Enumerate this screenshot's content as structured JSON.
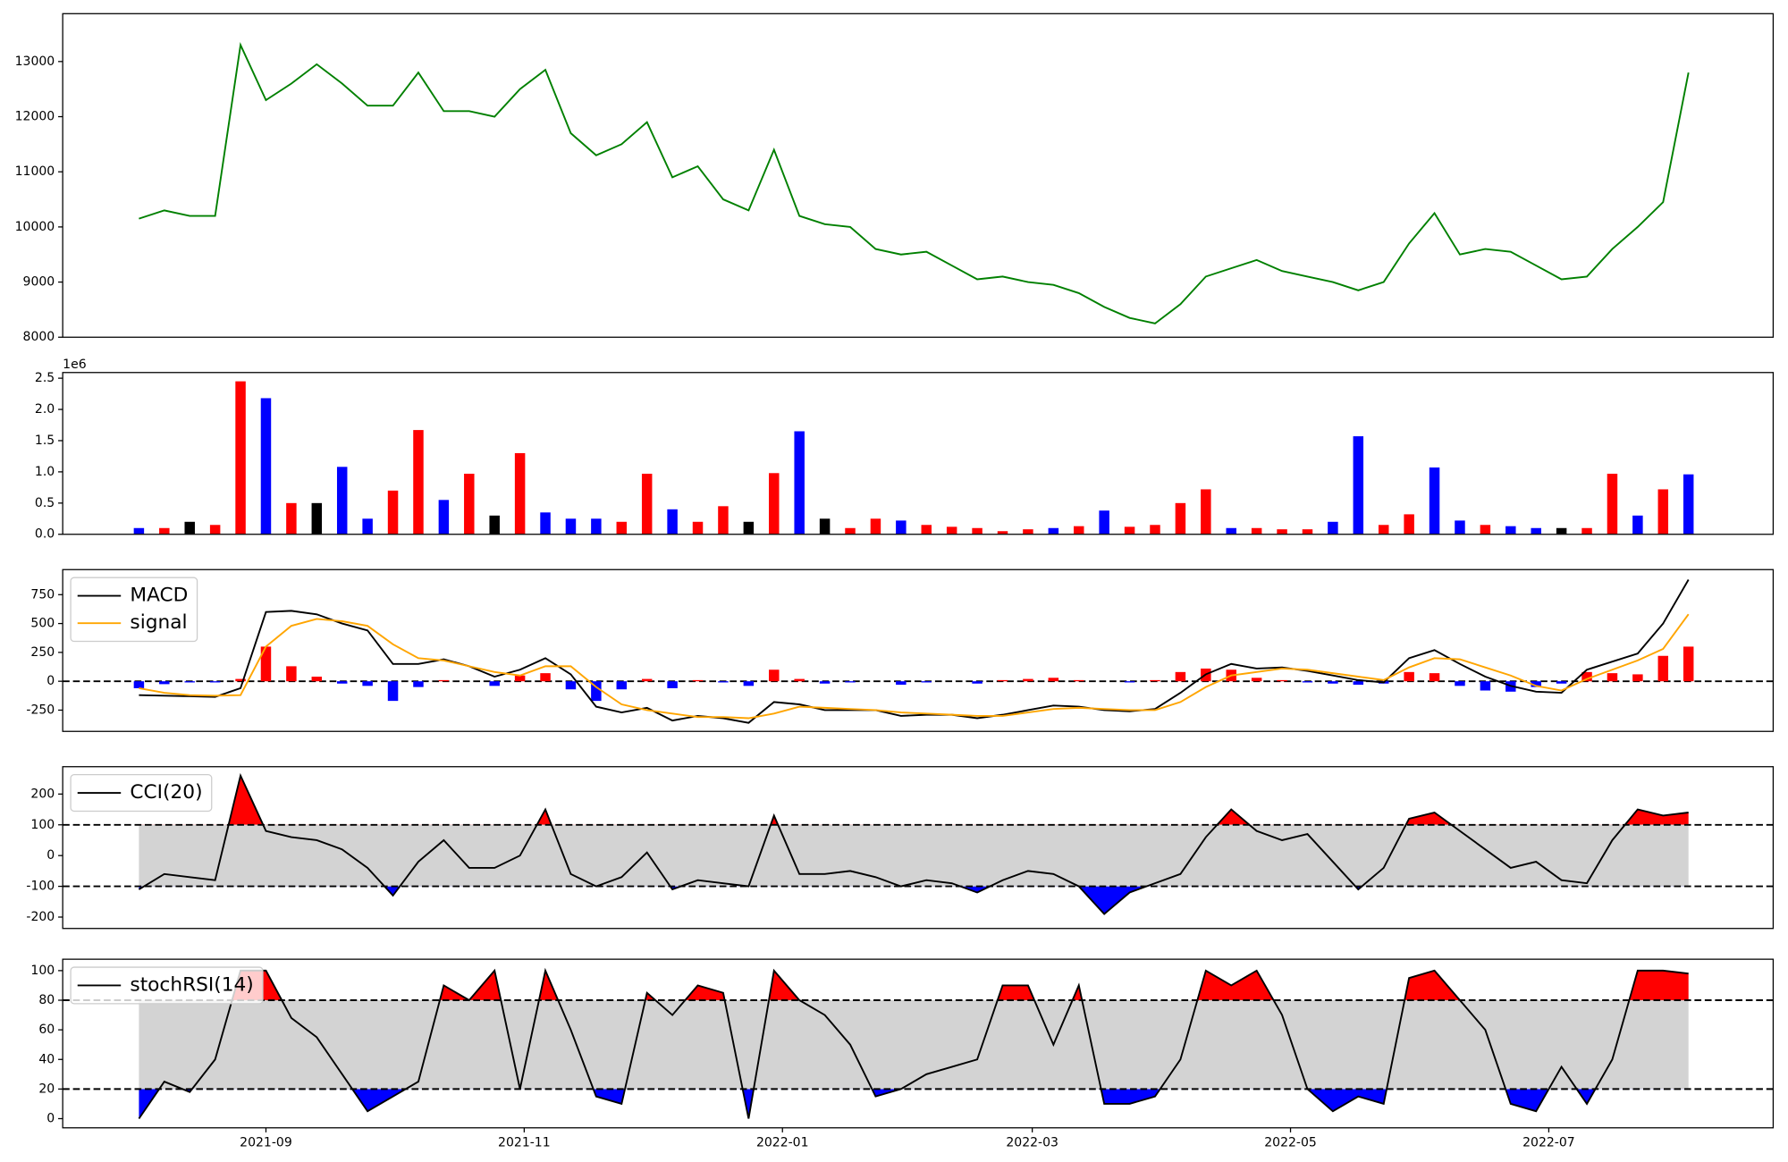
{
  "chart_data": [
    {
      "type": "line",
      "x": [
        18841,
        18847,
        18853,
        18859,
        18865,
        18871,
        18877,
        18883,
        18889,
        18895,
        18901,
        18907,
        18913,
        18919,
        18925,
        18931,
        18937,
        18943,
        18949,
        18955,
        18961,
        18967,
        18973,
        18979,
        18985,
        18991,
        18997,
        19003,
        19009,
        19015,
        19021,
        19027,
        19033,
        19039,
        19045,
        19051,
        19057,
        19063,
        19069,
        19075,
        19081,
        19087,
        19093,
        19099,
        19105,
        19111,
        19117,
        19123,
        19129,
        19135,
        19141,
        19147,
        19153,
        19159,
        19165,
        19171,
        19177,
        19183,
        19189,
        19195,
        19201,
        19207
      ],
      "xlim": [
        18823,
        19227
      ],
      "series": [
        {
          "color": "green",
          "values": [
            10150,
            10300,
            10200,
            10200,
            13300,
            12300,
            12600,
            12950,
            12600,
            12200,
            12200,
            12800,
            12100,
            12100,
            12000,
            12500,
            12850,
            11700,
            11300,
            11500,
            11900,
            10900,
            11100,
            10500,
            10300,
            11400,
            10200,
            10050,
            10000,
            9600,
            9500,
            9550,
            9300,
            9050,
            9100,
            9000,
            8950,
            8800,
            8550,
            8350,
            8250,
            8600,
            9100,
            9250,
            9400,
            9200,
            9100,
            9000,
            8850,
            9000,
            9700,
            10250,
            9500,
            9600,
            9550,
            9300,
            9050,
            9100,
            9600,
            10000,
            10450,
            12800
          ]
        }
      ],
      "ylim": [
        8000,
        13868
      ],
      "yticks": [
        8000,
        9000,
        10000,
        11000,
        12000,
        13000
      ]
    },
    {
      "type": "bar",
      "x": [
        18841,
        18847,
        18853,
        18859,
        18865,
        18871,
        18877,
        18883,
        18889,
        18895,
        18901,
        18907,
        18913,
        18919,
        18925,
        18931,
        18937,
        18943,
        18949,
        18955,
        18961,
        18967,
        18973,
        18979,
        18985,
        18991,
        18997,
        19003,
        19009,
        19015,
        19021,
        19027,
        19033,
        19039,
        19045,
        19051,
        19057,
        19063,
        19069,
        19075,
        19081,
        19087,
        19093,
        19099,
        19105,
        19111,
        19117,
        19123,
        19129,
        19135,
        19141,
        19147,
        19153,
        19159,
        19165,
        19171,
        19177,
        19183,
        19189,
        19195,
        19201,
        19207
      ],
      "xlim": [
        18823,
        19227
      ],
      "values": [
        100000,
        100000,
        200000,
        150000,
        2450000,
        2180000,
        500000,
        500000,
        1080000,
        250000,
        700000,
        1670000,
        550000,
        970000,
        300000,
        1300000,
        350000,
        250000,
        250000,
        200000,
        970000,
        400000,
        200000,
        450000,
        200000,
        980000,
        1650000,
        250000,
        100000,
        250000,
        220000,
        150000,
        120000,
        100000,
        50000,
        80000,
        100000,
        130000,
        380000,
        120000,
        150000,
        500000,
        720000,
        100000,
        100000,
        80000,
        80000,
        200000,
        1570000,
        150000,
        320000,
        1070000,
        220000,
        150000,
        130000,
        100000,
        100000,
        100000,
        970000,
        300000,
        720000,
        960000
      ],
      "colors": [
        "blue",
        "red",
        "black",
        "red",
        "red",
        "blue",
        "red",
        "black",
        "blue",
        "blue",
        "red",
        "red",
        "blue",
        "red",
        "black",
        "red",
        "blue",
        "blue",
        "blue",
        "red",
        "red",
        "blue",
        "red",
        "red",
        "black",
        "red",
        "blue",
        "black",
        "red",
        "red",
        "blue",
        "red",
        "red",
        "red",
        "red",
        "red",
        "blue",
        "red",
        "blue",
        "red",
        "red",
        "red",
        "red",
        "blue",
        "red",
        "red",
        "red",
        "blue",
        "blue",
        "red",
        "red",
        "blue",
        "blue",
        "red",
        "blue",
        "blue",
        "black",
        "red",
        "red",
        "blue",
        "red",
        "blue"
      ],
      "ylim": [
        0,
        2591000
      ],
      "yticks": [
        {
          "value": 0,
          "label": "0.0"
        },
        {
          "value": 500000,
          "label": "0.5"
        },
        {
          "value": 1000000,
          "label": "1.0"
        },
        {
          "value": 1500000,
          "label": "1.5"
        },
        {
          "value": 2000000,
          "label": "2.0"
        },
        {
          "value": 2500000,
          "label": "2.5"
        }
      ],
      "y_offset_label": "1e6"
    },
    {
      "type": "line",
      "x": [
        18841,
        18847,
        18853,
        18859,
        18865,
        18871,
        18877,
        18883,
        18889,
        18895,
        18901,
        18907,
        18913,
        18919,
        18925,
        18931,
        18937,
        18943,
        18949,
        18955,
        18961,
        18967,
        18973,
        18979,
        18985,
        18991,
        18997,
        19003,
        19009,
        19015,
        19021,
        19027,
        19033,
        19039,
        19045,
        19051,
        19057,
        19063,
        19069,
        19075,
        19081,
        19087,
        19093,
        19099,
        19105,
        19111,
        19117,
        19123,
        19129,
        19135,
        19141,
        19147,
        19153,
        19159,
        19165,
        19171,
        19177,
        19183,
        19189,
        19195,
        19201,
        19207
      ],
      "xlim": [
        18823,
        19227
      ],
      "series": [
        {
          "name": "MACD",
          "color": "black",
          "values": [
            -120,
            -125,
            -130,
            -135,
            -60,
            600,
            610,
            580,
            500,
            440,
            150,
            150,
            190,
            130,
            40,
            100,
            200,
            60,
            -220,
            -270,
            -230,
            -340,
            -300,
            -320,
            -360,
            -180,
            -200,
            -250,
            -250,
            -250,
            -300,
            -290,
            -290,
            -320,
            -290,
            -250,
            -210,
            -220,
            -250,
            -260,
            -240,
            -100,
            60,
            150,
            110,
            120,
            90,
            50,
            10,
            -10,
            200,
            270,
            150,
            40,
            -40,
            -90,
            -100,
            100,
            170,
            240,
            500,
            880
          ]
        },
        {
          "name": "signal",
          "color": "orange",
          "values": [
            -60,
            -100,
            -120,
            -125,
            -120,
            300,
            480,
            540,
            520,
            480,
            320,
            200,
            180,
            130,
            80,
            50,
            130,
            130,
            -50,
            -200,
            -250,
            -280,
            -310,
            -310,
            -320,
            -280,
            -220,
            -230,
            -240,
            -250,
            -270,
            -280,
            -290,
            -300,
            -300,
            -270,
            -240,
            -230,
            -240,
            -250,
            -250,
            -180,
            -50,
            50,
            80,
            110,
            100,
            70,
            40,
            10,
            120,
            200,
            190,
            120,
            50,
            -40,
            -80,
            20,
            100,
            180,
            280,
            580
          ]
        }
      ],
      "histogram": {
        "up_color": "red",
        "down_color": "blue",
        "values": [
          -60,
          -25,
          -10,
          -10,
          20,
          300,
          130,
          40,
          -20,
          -40,
          -170,
          -50,
          10,
          0,
          -40,
          50,
          70,
          -70,
          -170,
          -70,
          20,
          -60,
          10,
          -10,
          -40,
          100,
          20,
          -20,
          -10,
          0,
          -30,
          -10,
          0,
          -20,
          10,
          20,
          30,
          10,
          0,
          -10,
          10,
          80,
          110,
          100,
          30,
          10,
          -10,
          -20,
          -30,
          -20,
          80,
          70,
          -40,
          -80,
          -90,
          -50,
          -20,
          80,
          70,
          60,
          220,
          300
        ]
      },
      "hline": 0,
      "legend": "upper left",
      "ylim": [
        -434,
        967
      ],
      "yticks": [
        -250,
        0,
        250,
        500,
        750
      ]
    },
    {
      "type": "line",
      "x": [
        18841,
        18847,
        18853,
        18859,
        18865,
        18871,
        18877,
        18883,
        18889,
        18895,
        18901,
        18907,
        18913,
        18919,
        18925,
        18931,
        18937,
        18943,
        18949,
        18955,
        18961,
        18967,
        18973,
        18979,
        18985,
        18991,
        18997,
        19003,
        19009,
        19015,
        19021,
        19027,
        19033,
        19039,
        19045,
        19051,
        19057,
        19063,
        19069,
        19075,
        19081,
        19087,
        19093,
        19099,
        19105,
        19111,
        19117,
        19123,
        19129,
        19135,
        19141,
        19147,
        19153,
        19159,
        19165,
        19171,
        19177,
        19183,
        19189,
        19195,
        19201,
        19207
      ],
      "xlim": [
        18823,
        19227
      ],
      "series": [
        {
          "name": "CCI(20)",
          "color": "black",
          "values": [
            -110,
            -60,
            -70,
            -80,
            260,
            80,
            60,
            50,
            20,
            -40,
            -130,
            -20,
            50,
            -40,
            -40,
            0,
            150,
            -60,
            -100,
            -70,
            10,
            -110,
            -80,
            -90,
            -100,
            130,
            -60,
            -60,
            -50,
            -70,
            -100,
            -80,
            -90,
            -120,
            -80,
            -50,
            -60,
            -100,
            -190,
            -120,
            -90,
            -60,
            60,
            150,
            80,
            50,
            70,
            -20,
            -110,
            -40,
            120,
            140,
            80,
            20,
            -40,
            -20,
            -80,
            -90,
            50,
            150,
            130,
            140
          ]
        }
      ],
      "bands": [
        -100,
        100
      ],
      "band_color": "lightgray",
      "over_color": "red",
      "under_color": "blue",
      "legend": "upper left",
      "ylim": [
        -237,
        289
      ],
      "yticks": [
        -200,
        -100,
        0,
        100,
        200
      ]
    },
    {
      "type": "line",
      "x": [
        18841,
        18847,
        18853,
        18859,
        18865,
        18871,
        18877,
        18883,
        18889,
        18895,
        18901,
        18907,
        18913,
        18919,
        18925,
        18931,
        18937,
        18943,
        18949,
        18955,
        18961,
        18967,
        18973,
        18979,
        18985,
        18991,
        18997,
        19003,
        19009,
        19015,
        19021,
        19027,
        19033,
        19039,
        19045,
        19051,
        19057,
        19063,
        19069,
        19075,
        19081,
        19087,
        19093,
        19099,
        19105,
        19111,
        19117,
        19123,
        19129,
        19135,
        19141,
        19147,
        19153,
        19159,
        19165,
        19171,
        19177,
        19183,
        19189,
        19195,
        19201,
        19207
      ],
      "xlim": [
        18823,
        19227
      ],
      "xticks": [
        {
          "value": 18871,
          "label": "2021-09"
        },
        {
          "value": 18932,
          "label": "2021-11"
        },
        {
          "value": 18993,
          "label": "2022-01"
        },
        {
          "value": 19052,
          "label": "2022-03"
        },
        {
          "value": 19113,
          "label": "2022-05"
        },
        {
          "value": 19174,
          "label": "2022-07"
        }
      ],
      "series": [
        {
          "name": "stochRSI(14)",
          "color": "black",
          "values": [
            0,
            25,
            18,
            40,
            100,
            100,
            68,
            55,
            30,
            5,
            15,
            25,
            90,
            80,
            100,
            20,
            100,
            60,
            15,
            10,
            85,
            70,
            90,
            85,
            0,
            100,
            80,
            70,
            50,
            15,
            20,
            30,
            35,
            40,
            90,
            90,
            50,
            90,
            10,
            10,
            15,
            40,
            100,
            90,
            100,
            70,
            20,
            5,
            15,
            10,
            95,
            100,
            80,
            60,
            10,
            5,
            35,
            10,
            40,
            100,
            100,
            98
          ]
        }
      ],
      "bands": [
        20,
        80
      ],
      "band_color": "lightgray",
      "over_color": "red",
      "under_color": "blue",
      "legend": "upper left",
      "ylim": [
        -6.2,
        107.7
      ],
      "yticks": [
        0,
        20,
        40,
        60,
        80,
        100
      ]
    }
  ]
}
